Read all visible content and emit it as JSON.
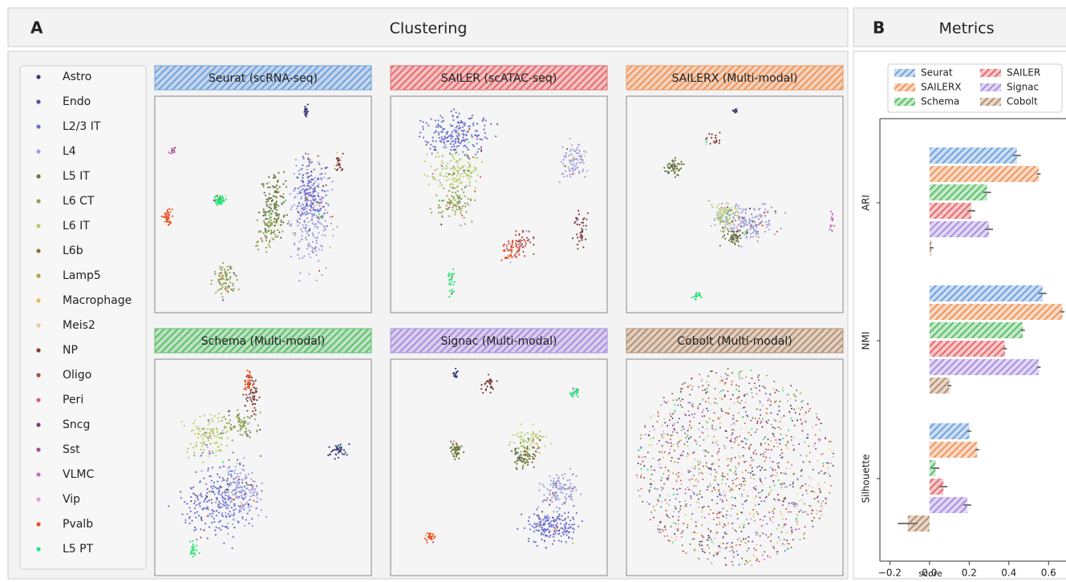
{
  "panel_a": {
    "label": "A",
    "title": "Clustering",
    "legend": [
      {
        "name": "Astro",
        "color": "#393b79"
      },
      {
        "name": "Endo",
        "color": "#5254a3"
      },
      {
        "name": "L2/3 IT",
        "color": "#6b6ecf"
      },
      {
        "name": "L4",
        "color": "#9c9ede"
      },
      {
        "name": "L5 IT",
        "color": "#637939"
      },
      {
        "name": "L6 CT",
        "color": "#8ca252"
      },
      {
        "name": "L6 IT",
        "color": "#b5cf6b"
      },
      {
        "name": "L6b",
        "color": "#8c6d31"
      },
      {
        "name": "Lamp5",
        "color": "#bd9e39"
      },
      {
        "name": "Macrophage",
        "color": "#e7ba52"
      },
      {
        "name": "Meis2",
        "color": "#e7cb94"
      },
      {
        "name": "NP",
        "color": "#843c39"
      },
      {
        "name": "Oligo",
        "color": "#ad494a"
      },
      {
        "name": "Peri",
        "color": "#d6616b"
      },
      {
        "name": "Sncg",
        "color": "#7b4173"
      },
      {
        "name": "Sst",
        "color": "#a55194"
      },
      {
        "name": "VLMC",
        "color": "#ce6dbd"
      },
      {
        "name": "Vip",
        "color": "#de9ed6"
      },
      {
        "name": "Pvalb",
        "color": "#f0501e"
      },
      {
        "name": "L5 PT",
        "color": "#1ee878"
      }
    ],
    "embeddings": [
      {
        "title": "Seurat (scRNA-seq)",
        "color": "#6fa1dd"
      },
      {
        "title": "SAILER (scATAC-seq)",
        "color": "#e8686b"
      },
      {
        "title": "SAILERX (Multi-modal)",
        "color": "#f0955a"
      },
      {
        "title": "Schema (Multi-modal)",
        "color": "#5cc06b"
      },
      {
        "title": "Signac (Multi-modal)",
        "color": "#a98ee0"
      },
      {
        "title": "Cobolt (Multi-modal)",
        "color": "#b68e6d"
      }
    ]
  },
  "panel_b": {
    "label": "B",
    "title": "Metrics"
  },
  "chart_data": {
    "type": "barh",
    "categories": [
      "ARI",
      "NMI",
      "Silhouette"
    ],
    "series": [
      {
        "name": "Seurat",
        "color": "#6fa1dd",
        "values": [
          0.44,
          0.57,
          0.2
        ],
        "errors": [
          0.02,
          0.02,
          0.01
        ]
      },
      {
        "name": "SAILERX",
        "color": "#f0955a",
        "values": [
          0.55,
          0.67,
          0.24
        ],
        "errors": [
          0.01,
          0.01,
          0.01
        ]
      },
      {
        "name": "Schema",
        "color": "#5cc06b",
        "values": [
          0.29,
          0.47,
          0.03
        ],
        "errors": [
          0.02,
          0.01,
          0.02
        ]
      },
      {
        "name": "SAILER",
        "color": "#e8686b",
        "values": [
          0.21,
          0.38,
          0.07
        ],
        "errors": [
          0.02,
          0.01,
          0.02
        ]
      },
      {
        "name": "Signac",
        "color": "#a98ee0",
        "values": [
          0.3,
          0.55,
          0.19
        ],
        "errors": [
          0.02,
          0.01,
          0.02
        ]
      },
      {
        "name": "Cobolt",
        "color": "#b68e6d",
        "values": [
          0.01,
          0.1,
          -0.11
        ],
        "errors": [
          0.01,
          0.01,
          0.05
        ]
      }
    ],
    "xlim": [
      -0.25,
      0.7
    ],
    "xticks": [
      {
        "value": -0.2,
        "label": "−0.2"
      },
      {
        "value": 0,
        "label": "0.0"
      },
      0.2,
      0.4,
      0.6
    ],
    "xlabel": "score",
    "legend": "upper right"
  }
}
